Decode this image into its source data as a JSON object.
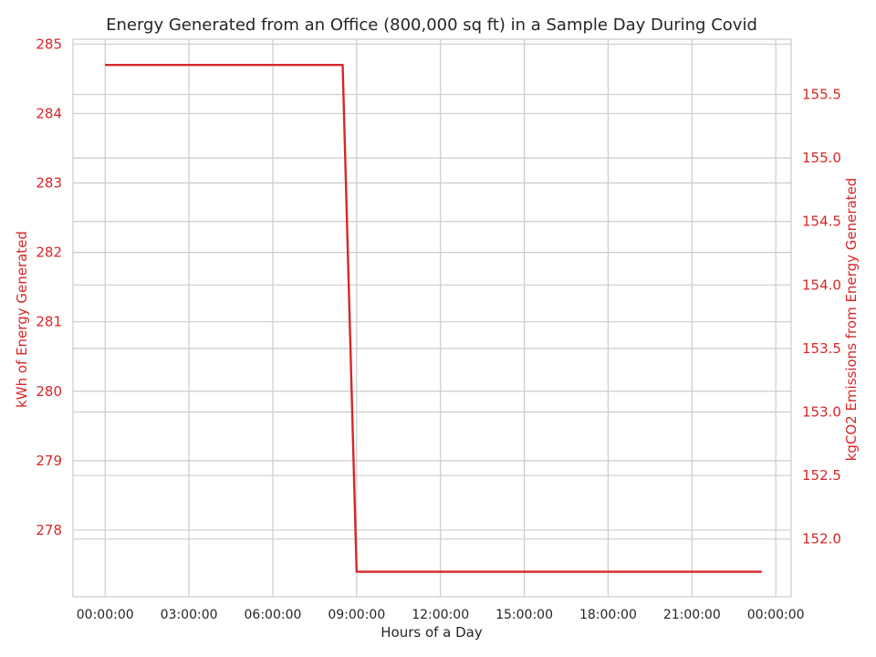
{
  "colors": {
    "line": "#d62728",
    "axis_text": "#d62728",
    "grid": "#cccccc",
    "frame": "#cccccc",
    "text": "#262626"
  },
  "chart_data": {
    "type": "line",
    "title": "Energy Generated from an Office (800,000 sq ft) in a Sample Day During Covid",
    "xlabel": "Hours of a Day",
    "ylabel_left": "kWh of Energy Generated",
    "ylabel_right": "kgCO2 Emissions from Energy Generated",
    "x_unit": "hours",
    "xlim": [
      -1.15,
      24.55
    ],
    "x_ticks": [
      0,
      3,
      6,
      9,
      12,
      15,
      18,
      21,
      24
    ],
    "x_tick_labels": [
      "00:00:00",
      "03:00:00",
      "06:00:00",
      "09:00:00",
      "12:00:00",
      "15:00:00",
      "18:00:00",
      "21:00:00",
      "00:00:00"
    ],
    "ylim_left": [
      277.04,
      285.07
    ],
    "y_ticks_left": [
      278,
      279,
      280,
      281,
      282,
      283,
      284,
      285
    ],
    "y_tick_labels_left": [
      "278",
      "279",
      "280",
      "281",
      "282",
      "283",
      "284",
      "285"
    ],
    "ylim_right": [
      151.545,
      155.935
    ],
    "y_ticks_right": [
      152.0,
      152.5,
      153.0,
      153.5,
      154.0,
      154.5,
      155.0,
      155.5
    ],
    "y_tick_labels_right": [
      "152.0",
      "152.5",
      "153.0",
      "153.5",
      "154.0",
      "154.5",
      "155.0",
      "155.5"
    ],
    "grid": true,
    "series": [
      {
        "name": "kWh of Energy Generated",
        "axis": "left",
        "x": [
          0,
          8.5,
          9.0,
          23.5
        ],
        "y": [
          284.7,
          284.7,
          277.4,
          277.4
        ]
      }
    ]
  }
}
